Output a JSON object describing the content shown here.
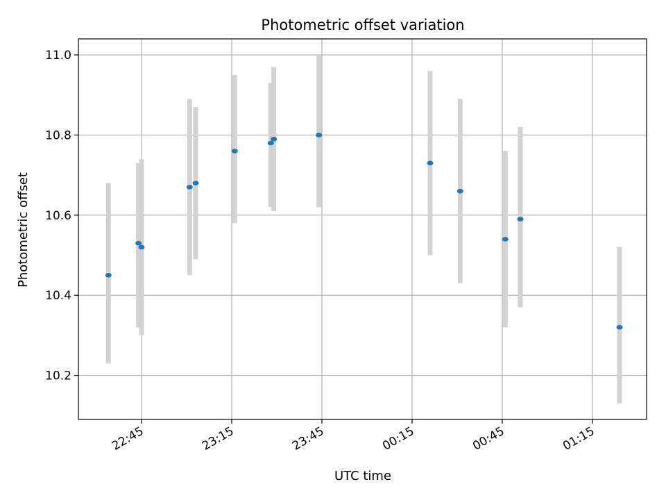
{
  "chart_data": {
    "type": "scatter",
    "title": "Photometric offset variation",
    "xlabel": "UTC time",
    "ylabel": "Photometric offset",
    "x_ticks": [
      "22:45",
      "23:15",
      "23:45",
      "00:15",
      "00:45",
      "01:15"
    ],
    "y_ticks": [
      "10.2",
      "10.4",
      "10.6",
      "10.8",
      "11.0"
    ],
    "x_tick_values": [
      "22:45",
      "23:15",
      "23:45",
      "00:15",
      "00:45",
      "01:15"
    ],
    "y_tick_values": [
      10.2,
      10.4,
      10.6,
      10.8,
      11.0
    ],
    "xlim": [
      "22:24",
      "01:33"
    ],
    "ylim": [
      10.09,
      11.04
    ],
    "grid": true,
    "point_color": "#1f77b4",
    "errorbar_color": "#d3d3d3",
    "points": [
      {
        "x": "22:34",
        "y": 10.45,
        "err_low": 10.23,
        "err_high": 10.68
      },
      {
        "x": "22:44",
        "y": 10.53,
        "err_low": 10.32,
        "err_high": 10.73
      },
      {
        "x": "22:45",
        "y": 10.52,
        "err_low": 10.3,
        "err_high": 10.74
      },
      {
        "x": "23:01",
        "y": 10.67,
        "err_low": 10.45,
        "err_high": 10.89
      },
      {
        "x": "23:03",
        "y": 10.68,
        "err_low": 10.49,
        "err_high": 10.87
      },
      {
        "x": "23:16",
        "y": 10.76,
        "err_low": 10.58,
        "err_high": 10.95
      },
      {
        "x": "23:28",
        "y": 10.78,
        "err_low": 10.62,
        "err_high": 10.93
      },
      {
        "x": "23:29",
        "y": 10.79,
        "err_low": 10.61,
        "err_high": 10.97
      },
      {
        "x": "23:44",
        "y": 10.8,
        "err_low": 10.62,
        "err_high": 11.0
      },
      {
        "x": "00:21",
        "y": 10.73,
        "err_low": 10.5,
        "err_high": 10.96
      },
      {
        "x": "00:31",
        "y": 10.66,
        "err_low": 10.43,
        "err_high": 10.89
      },
      {
        "x": "00:46",
        "y": 10.54,
        "err_low": 10.32,
        "err_high": 10.76
      },
      {
        "x": "00:51",
        "y": 10.59,
        "err_low": 10.37,
        "err_high": 10.82
      },
      {
        "x": "01:24",
        "y": 10.32,
        "err_low": 10.13,
        "err_high": 10.52
      }
    ]
  }
}
